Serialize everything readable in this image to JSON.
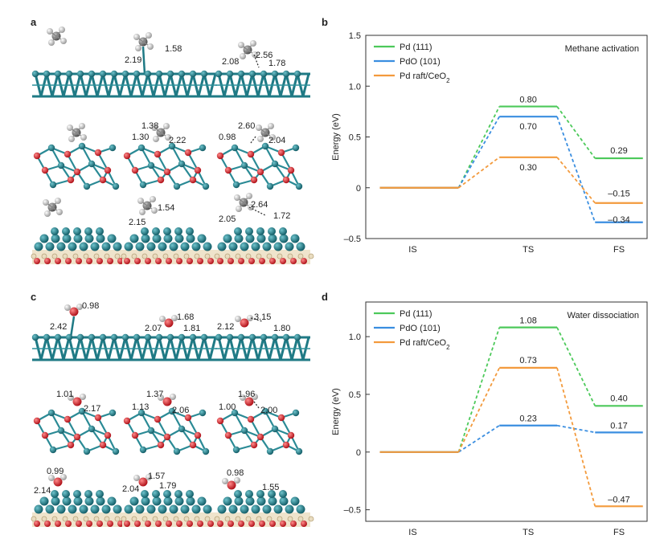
{
  "panels": {
    "a": {
      "label": "a"
    },
    "b": {
      "label": "b"
    },
    "c": {
      "label": "c"
    },
    "d": {
      "label": "d"
    }
  },
  "structures_a": {
    "row1": {
      "tsd1": "2.19",
      "tsd2": "1.58",
      "fsd1": "2.08",
      "fsd2": "2.56",
      "fsd3": "1.78"
    },
    "row2": {
      "tsd1": "1.38",
      "tsd2": "1.30",
      "tsd3": "2.22",
      "fsd1": "2.60",
      "fsd2": "0.98",
      "fsd3": "2.04"
    },
    "row3": {
      "tsd1": "1.54",
      "tsd2": "2.15",
      "fsd1": "2.64",
      "fsd2": "2.05",
      "fsd3": "1.72"
    }
  },
  "structures_c": {
    "row1": {
      "isd1": "0.98",
      "isd2": "2.42",
      "tsd1": "1.68",
      "tsd2": "2.07",
      "tsd3": "1.81",
      "fsd1": "2.12",
      "fsd2": "3.15",
      "fsd3": "1.80"
    },
    "row2": {
      "isd1": "1.01",
      "isd2": "2.17",
      "tsd1": "1.37",
      "tsd2": "1.13",
      "tsd3": "2.06",
      "fsd1": "1.96",
      "fsd2": "1.00",
      "fsd3": "2.00"
    },
    "row3": {
      "isd1": "0.99",
      "isd2": "2.14",
      "tsd1": "1.57",
      "tsd2": "2.04",
      "tsd3": "1.79",
      "fsd1": "0.98",
      "fsd2": "1.55"
    }
  },
  "chart_data": [
    {
      "type": "line",
      "id": "b",
      "title": "Methane activation",
      "xlabel": "",
      "ylabel": "Energy (eV)",
      "categories": [
        "IS",
        "TS",
        "FS"
      ],
      "ylim": [
        -0.5,
        1.5
      ],
      "yticks": [
        "-0.5",
        "0",
        "0.5",
        "1.0",
        "1.5"
      ],
      "legend_position": "top-left",
      "series": [
        {
          "name": "Pd (111)",
          "color": "#4cc95a",
          "values": [
            0,
            0.8,
            0.29
          ],
          "labels": [
            "",
            "0.80",
            "0.29"
          ]
        },
        {
          "name": "PdO (101)",
          "color": "#3a8ee0",
          "values": [
            0,
            0.7,
            -0.34
          ],
          "labels": [
            "",
            "0.70",
            "–0.34"
          ]
        },
        {
          "name": "Pd raft/CeO",
          "sub": "2",
          "color": "#f39a3c",
          "values": [
            0,
            0.3,
            -0.15
          ],
          "labels": [
            "",
            "0.30",
            "–0.15"
          ]
        }
      ]
    },
    {
      "type": "line",
      "id": "d",
      "title": "Water dissociation",
      "xlabel": "",
      "ylabel": "Energy (eV)",
      "categories": [
        "IS",
        "TS",
        "FS"
      ],
      "ylim": [
        -0.6,
        1.3
      ],
      "yticks": [
        "-0.5",
        "0",
        "0.5",
        "1.0"
      ],
      "legend_position": "top-left",
      "series": [
        {
          "name": "Pd (111)",
          "color": "#4cc95a",
          "values": [
            0,
            1.08,
            0.4
          ],
          "labels": [
            "",
            "1.08",
            "0.40"
          ]
        },
        {
          "name": "PdO (101)",
          "color": "#3a8ee0",
          "values": [
            0,
            0.23,
            0.17
          ],
          "labels": [
            "",
            "0.23",
            "0.17"
          ]
        },
        {
          "name": "Pd raft/CeO",
          "sub": "2",
          "color": "#f39a3c",
          "values": [
            0,
            0.73,
            -0.47
          ],
          "labels": [
            "",
            "0.73",
            "–0.47"
          ]
        }
      ]
    }
  ],
  "colors": {
    "pd": "#1f7f8c",
    "o": "#d9262b",
    "h": "#e6e6e6",
    "c": "#777777",
    "ce": "#e8dcc0"
  }
}
